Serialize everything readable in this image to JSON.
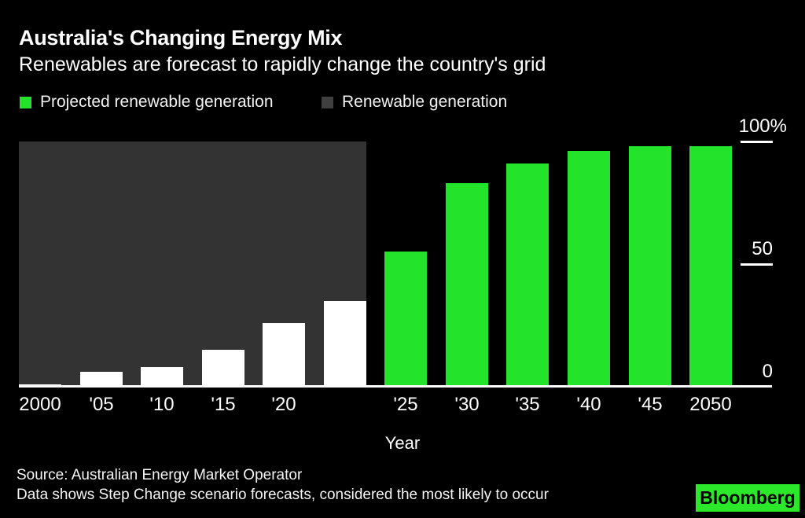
{
  "header": {
    "title": "Australia's Changing Energy Mix",
    "subtitle": "Renewables are forecast to rapidly change the country's grid"
  },
  "legend": [
    {
      "label": "Projected renewable generation",
      "color": "#23e32a"
    },
    {
      "label": "Renewable generation",
      "color": "#3f3f3f"
    }
  ],
  "colors": {
    "background": "#000000",
    "history_panel": "#333333",
    "historical_bar": "#ffffff",
    "projected_bar": "#23e32a",
    "axis": "#ffffff",
    "text": "#ffffff",
    "logo_background": "#2be82b",
    "logo_text": "#000000"
  },
  "chart_data": {
    "type": "bar",
    "title": "Australia's Changing Energy Mix",
    "subtitle": "Renewables are forecast to rapidly change the country's grid",
    "xlabel": "Year",
    "ylabel": "",
    "ylim": [
      0,
      100
    ],
    "grid": false,
    "legend_position": "top-left",
    "yticks": [
      {
        "value": 100,
        "label": "100%"
      },
      {
        "value": 50,
        "label": "50"
      },
      {
        "value": 0,
        "label": "0"
      }
    ],
    "categories": [
      "2000",
      "'05",
      "'10",
      "'15",
      "'20",
      "",
      "'25",
      "'30",
      "'35",
      "'40",
      "'45",
      "2050"
    ],
    "series": [
      {
        "name": "Renewable generation",
        "color": "#ffffff",
        "values": [
          1,
          6,
          8,
          15,
          26,
          35,
          null,
          null,
          null,
          null,
          null,
          null
        ]
      },
      {
        "name": "Projected renewable generation",
        "color": "#23e32a",
        "values": [
          null,
          null,
          null,
          null,
          null,
          null,
          55,
          83,
          91,
          96,
          98,
          98
        ]
      }
    ],
    "history_panel": {
      "series": "Renewable generation",
      "color": "#333333",
      "covers_categories": [
        "2000",
        "'05",
        "'10",
        "'15",
        "'20",
        ""
      ]
    }
  },
  "footer": {
    "source": "Source: Australian Energy Market Operator",
    "note": "Data shows Step Change scenario forecasts, considered the most likely to occur",
    "logo_text": "Bloomberg"
  }
}
